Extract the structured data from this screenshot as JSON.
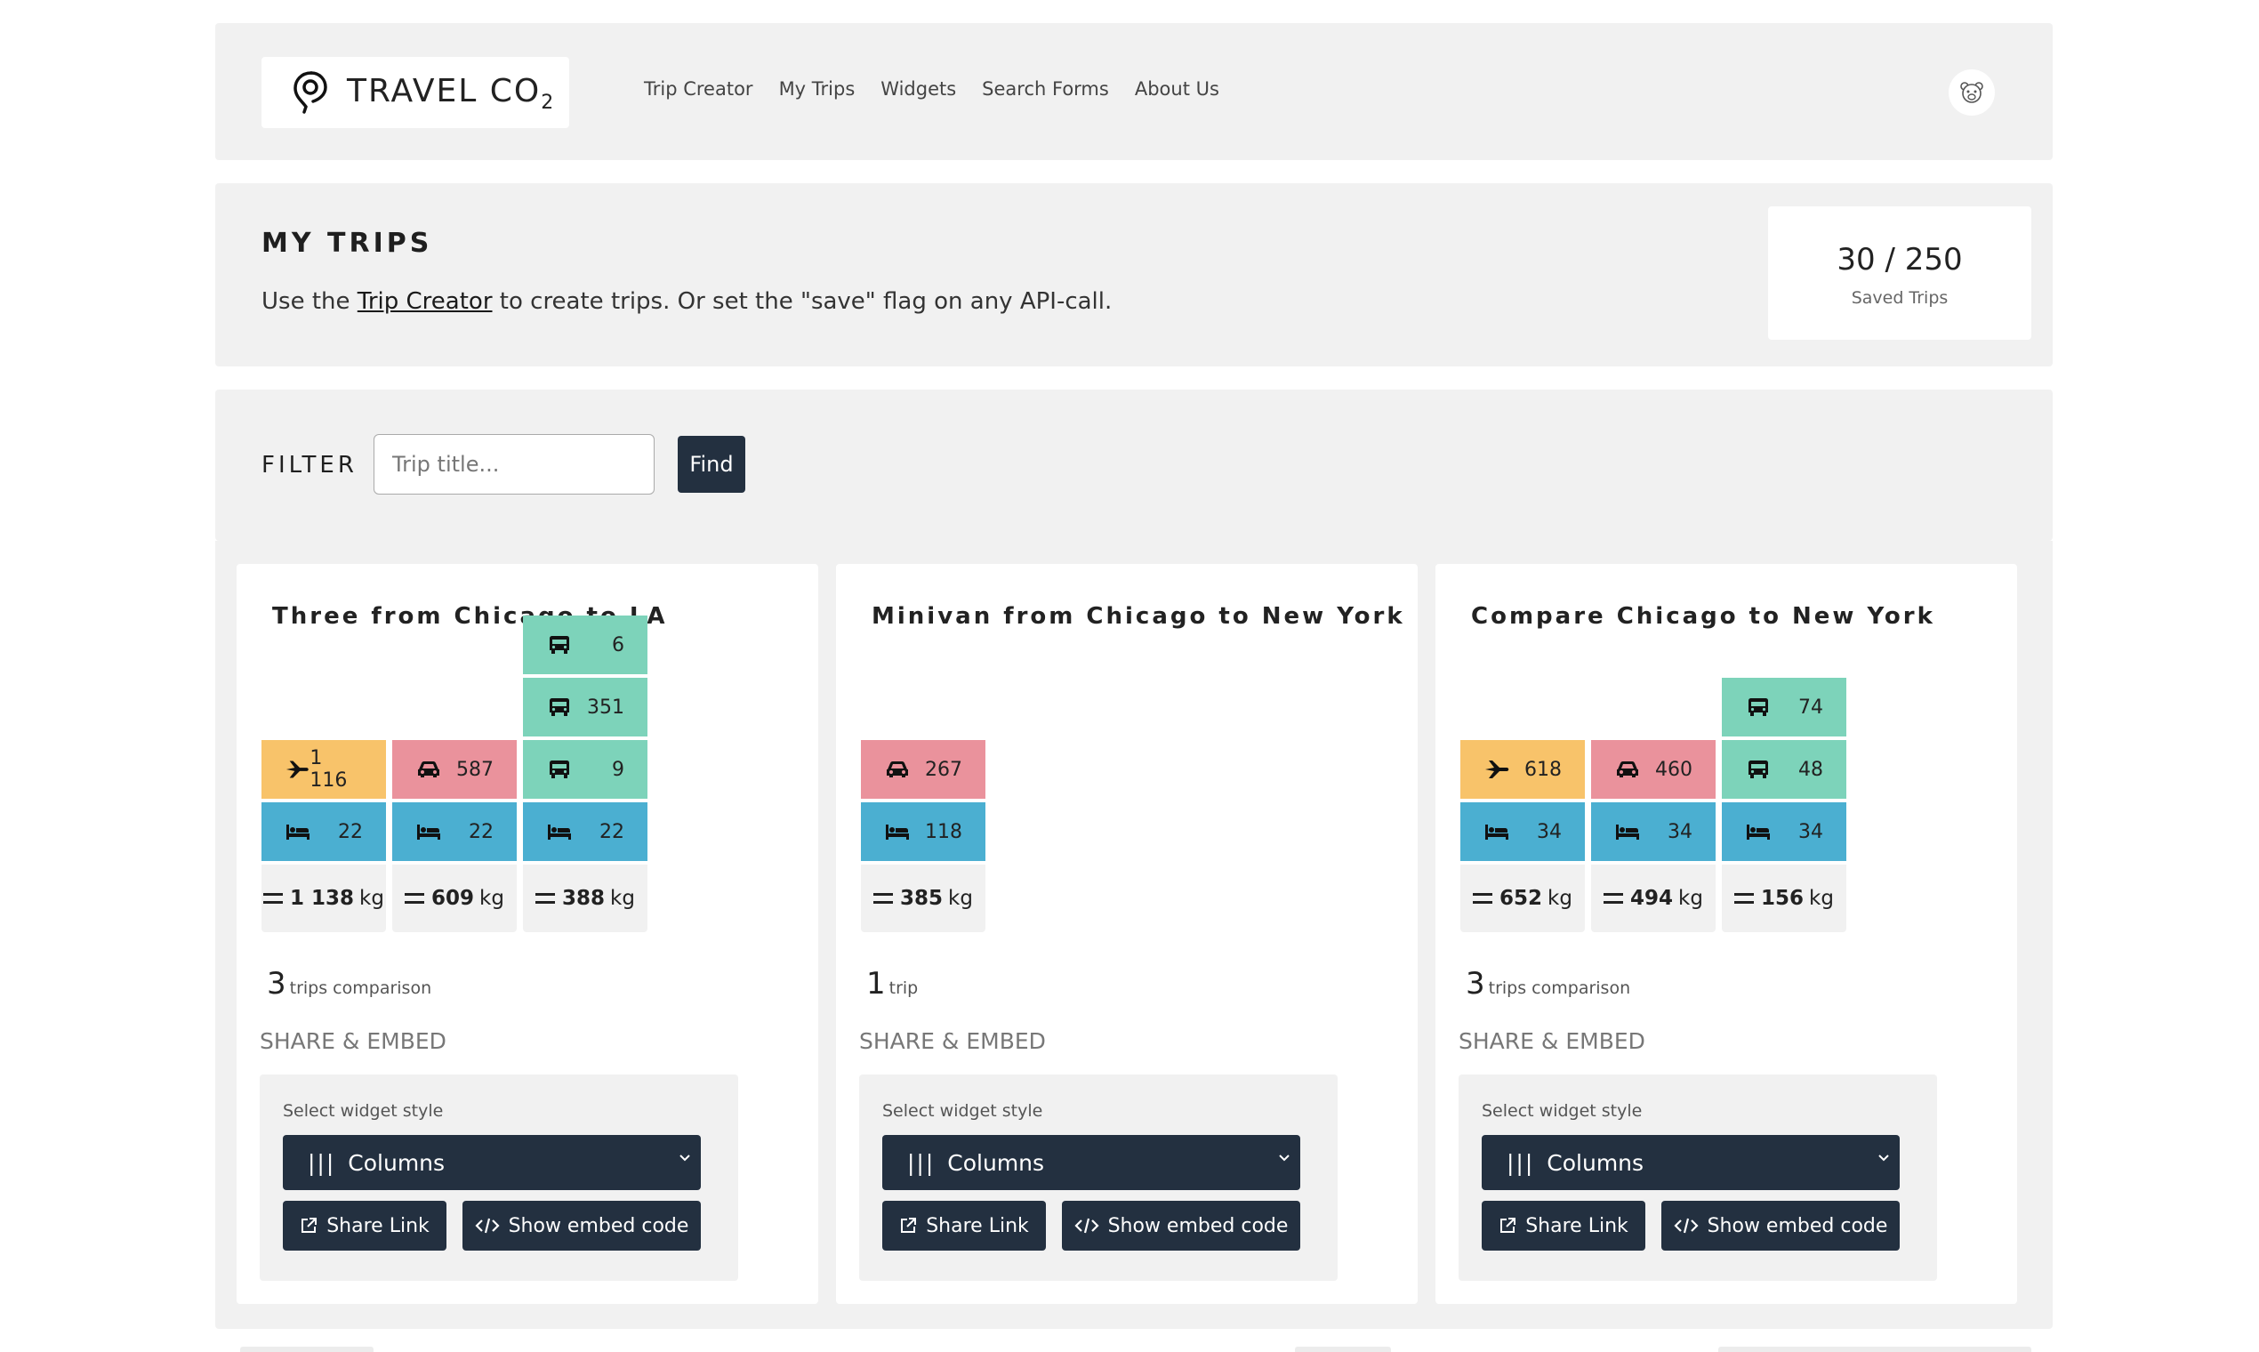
{
  "header": {
    "logo_text": "TRAVEL CO",
    "logo_sub": "2",
    "nav": [
      "Trip Creator",
      "My Trips",
      "Widgets",
      "Search Forms",
      "About Us"
    ],
    "avatar_icon": "bear-icon"
  },
  "intro": {
    "title": "MY TRIPS",
    "text_before": "Use the ",
    "link": "Trip Creator",
    "text_after": " to create trips. Or set the \"save\" flag on any API-call.",
    "stats_value": "30 / 250",
    "stats_label": "Saved Trips"
  },
  "filter": {
    "label": "FILTER",
    "placeholder": "Trip title...",
    "button": "Find"
  },
  "share": {
    "title": "SHARE & EMBED",
    "select_label": "Select widget style",
    "select_value": "Columns",
    "share_button": "Share Link",
    "embed_button": "Show embed code"
  },
  "colors": {
    "plane": "#f8c36a",
    "car": "#ea929c",
    "bus": "#7dd3ba",
    "hotel": "#4bafd1",
    "dark": "#233040"
  },
  "trips": [
    {
      "title": "Three from Chicago to LA",
      "count": "3",
      "count_label": "trips comparison",
      "columns": [
        {
          "segments": [
            {
              "type": "plane",
              "value": "1 116"
            },
            {
              "type": "hotel",
              "value": "22"
            }
          ],
          "total": "1 138",
          "unit": "kg"
        },
        {
          "segments": [
            {
              "type": "car",
              "value": "587"
            },
            {
              "type": "hotel",
              "value": "22"
            }
          ],
          "total": "609",
          "unit": "kg"
        },
        {
          "segments": [
            {
              "type": "bus",
              "value": "6"
            },
            {
              "type": "bus",
              "value": "351"
            },
            {
              "type": "bus",
              "value": "9"
            },
            {
              "type": "hotel",
              "value": "22"
            }
          ],
          "total": "388",
          "unit": "kg"
        }
      ]
    },
    {
      "title": "Minivan from Chicago to New York",
      "count": "1",
      "count_label": "trip",
      "columns": [
        {
          "segments": [
            {
              "type": "car",
              "value": "267"
            },
            {
              "type": "hotel",
              "value": "118"
            }
          ],
          "total": "385",
          "unit": "kg"
        }
      ]
    },
    {
      "title": "Compare Chicago to New York",
      "count": "3",
      "count_label": "trips comparison",
      "columns": [
        {
          "segments": [
            {
              "type": "plane",
              "value": "618"
            },
            {
              "type": "hotel",
              "value": "34"
            }
          ],
          "total": "652",
          "unit": "kg"
        },
        {
          "segments": [
            {
              "type": "car",
              "value": "460"
            },
            {
              "type": "hotel",
              "value": "34"
            }
          ],
          "total": "494",
          "unit": "kg"
        },
        {
          "segments": [
            {
              "type": "bus",
              "value": "74"
            },
            {
              "type": "bus",
              "value": "48"
            },
            {
              "type": "hotel",
              "value": "34"
            }
          ],
          "total": "156",
          "unit": "kg"
        }
      ]
    }
  ]
}
